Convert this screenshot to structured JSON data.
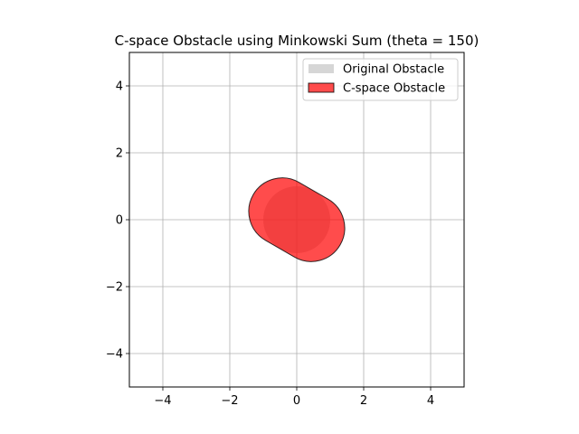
{
  "chart_data": {
    "type": "area",
    "title": "C-space Obstacle using Minkowski Sum (theta = 150)",
    "xlabel": "",
    "ylabel": "",
    "xlim": [
      -5,
      5
    ],
    "ylim": [
      -5,
      5
    ],
    "xticks": [
      -4,
      -2,
      0,
      2,
      4
    ],
    "yticks": [
      -4,
      -2,
      0,
      2,
      4
    ],
    "xtick_labels": [
      "−4",
      "−2",
      "0",
      "2",
      "4"
    ],
    "ytick_labels": [
      "−4",
      "−2",
      "0",
      "2",
      "4"
    ],
    "grid": true,
    "legend_position": "top-right",
    "series": [
      {
        "name": "Original Obstacle",
        "shape": "circle",
        "center": [
          0,
          0
        ],
        "radius": 1.0,
        "color": "#bbbbbb",
        "alpha": 0.6
      },
      {
        "name": "C-space Obstacle",
        "shape": "capsule",
        "endpoints": [
          [
            -0.433,
            0.25
          ],
          [
            0.433,
            -0.25
          ]
        ],
        "radius": 1.0,
        "color": "#ff0000",
        "edge_color": "#000000",
        "alpha": 0.7
      }
    ]
  }
}
